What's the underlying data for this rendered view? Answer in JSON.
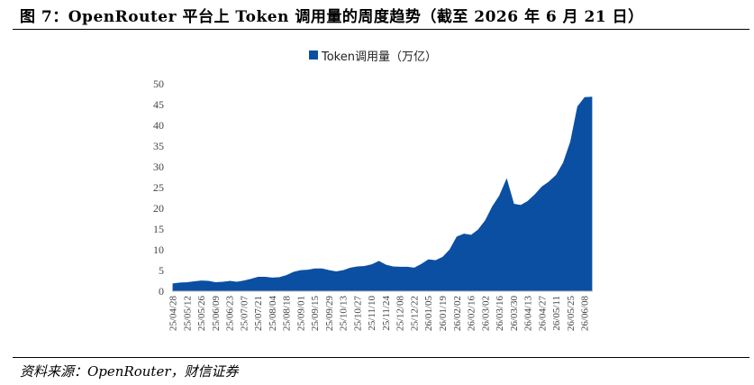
{
  "figure": {
    "title": "图 7：OpenRouter 平台上 Token 调用量的周度趋势（截至 2026 年 6 月 21 日）",
    "source": "资料来源：OpenRouter，财信证券"
  },
  "chart_data": {
    "type": "area",
    "title": "",
    "xlabel": "",
    "ylabel": "",
    "ylim": [
      0,
      50
    ],
    "yticks": [
      0,
      5,
      10,
      15,
      20,
      25,
      30,
      35,
      40,
      45,
      50
    ],
    "grid": false,
    "legend_position": "top-center",
    "x_tick_labels": [
      "25/04/28",
      "25/05/12",
      "25/05/26",
      "25/06/09",
      "25/06/23",
      "25/07/07",
      "25/07/21",
      "25/08/04",
      "25/08/18",
      "25/09/01",
      "25/09/15",
      "25/09/29",
      "25/10/13",
      "25/10/27",
      "25/11/10",
      "25/11/24",
      "25/12/08",
      "25/12/22",
      "26/01/05",
      "26/01/19",
      "26/02/02",
      "26/02/16",
      "26/03/02",
      "26/03/16",
      "26/03/30",
      "26/04/13",
      "26/04/27",
      "26/05/11",
      "26/05/25",
      "26/06/08"
    ],
    "colors": {
      "series": "#0b4fa3",
      "axis": "#bfbfbf",
      "text": "#444444"
    },
    "series": [
      {
        "name": "Token调用量（万亿）",
        "x": [
          "25/04/28",
          "25/05/05",
          "25/05/12",
          "25/05/19",
          "25/05/26",
          "25/06/02",
          "25/06/09",
          "25/06/16",
          "25/06/23",
          "25/06/30",
          "25/07/07",
          "25/07/14",
          "25/07/21",
          "25/07/28",
          "25/08/04",
          "25/08/11",
          "25/08/18",
          "25/08/25",
          "25/09/01",
          "25/09/08",
          "25/09/15",
          "25/09/22",
          "25/09/29",
          "25/10/06",
          "25/10/13",
          "25/10/20",
          "25/10/27",
          "25/11/03",
          "25/11/10",
          "25/11/17",
          "25/11/24",
          "25/12/01",
          "25/12/08",
          "25/12/15",
          "25/12/22",
          "25/12/29",
          "26/01/05",
          "26/01/12",
          "26/01/19",
          "26/01/26",
          "26/02/02",
          "26/02/09",
          "26/02/16",
          "26/02/23",
          "26/03/02",
          "26/03/09",
          "26/03/16",
          "26/03/23",
          "26/03/30",
          "26/04/06",
          "26/04/13",
          "26/04/20",
          "26/04/27",
          "26/05/04",
          "26/05/11",
          "26/05/18",
          "26/05/25",
          "26/06/01",
          "26/06/08",
          "26/06/15"
        ],
        "values": [
          1.8,
          2.0,
          2.1,
          2.3,
          2.5,
          2.4,
          2.1,
          2.2,
          2.4,
          2.2,
          2.5,
          2.9,
          3.4,
          3.4,
          3.2,
          3.3,
          3.8,
          4.6,
          5.0,
          5.1,
          5.4,
          5.4,
          5.0,
          4.7,
          5.0,
          5.6,
          5.9,
          6.0,
          6.4,
          7.2,
          6.3,
          5.9,
          5.8,
          5.8,
          5.6,
          6.5,
          7.6,
          7.4,
          8.2,
          10.0,
          13.1,
          13.8,
          13.5,
          14.8,
          17.0,
          20.4,
          23.0,
          27.0,
          21.0,
          20.7,
          21.7,
          23.3,
          25.2,
          26.4,
          28.0,
          31.0,
          36.0,
          44.5,
          46.7,
          46.8
        ]
      }
    ]
  }
}
